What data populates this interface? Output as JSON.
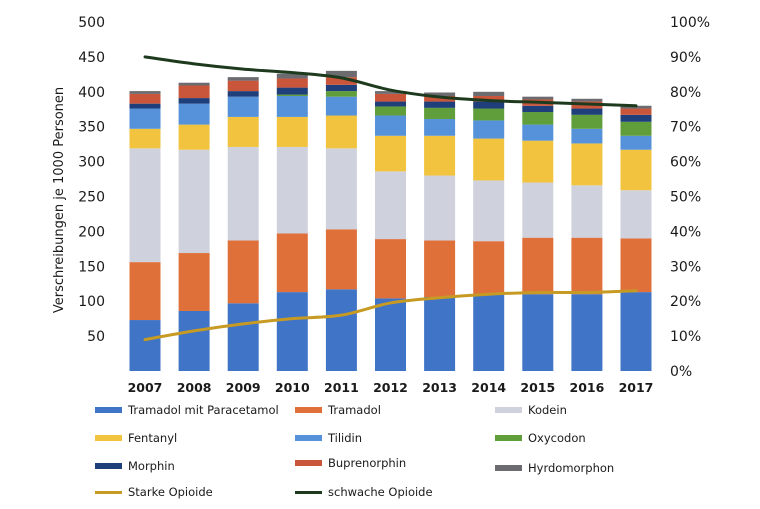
{
  "chart_data": {
    "type": "bar",
    "stacked": true,
    "title": "",
    "xlabel": "",
    "ylabel": "Verschreibungen je 1000 Personen",
    "ylim": [
      0,
      500
    ],
    "yticks": [
      "50",
      "100",
      "150",
      "200",
      "250",
      "300",
      "350",
      "400",
      "450",
      "500"
    ],
    "y2lim": [
      0,
      100
    ],
    "y2ticks": [
      "0%",
      "10%",
      "20%",
      "30%",
      "40%",
      "50%",
      "60%",
      "70%",
      "80%",
      "90%",
      "100%"
    ],
    "grid": false,
    "legend_position": "bottom",
    "categories": [
      "2007",
      "2008",
      "2009",
      "2010",
      "2011",
      "2012",
      "2013",
      "2014",
      "2015",
      "2016",
      "2017"
    ],
    "series": [
      {
        "name": "Tramadol mit Paracetamol",
        "color": "#3f74c6",
        "values": [
          73,
          86,
          97,
          113,
          117,
          104,
          106,
          109,
          110,
          110,
          113
        ]
      },
      {
        "name": "Tramadol",
        "color": "#e0703a",
        "values": [
          83,
          83,
          90,
          84,
          86,
          85,
          81,
          77,
          81,
          81,
          77
        ]
      },
      {
        "name": "Kodein",
        "color": "#cfd2dc",
        "values": [
          163,
          148,
          134,
          124,
          116,
          97,
          93,
          87,
          79,
          75,
          69
        ]
      },
      {
        "name": "Fentanyl",
        "color": "#f2c33e",
        "values": [
          28,
          36,
          43,
          43,
          47,
          51,
          57,
          60,
          60,
          60,
          58
        ]
      },
      {
        "name": "Tilidin",
        "color": "#5592da",
        "values": [
          29,
          30,
          29,
          30,
          27,
          29,
          24,
          26,
          23,
          21,
          20
        ]
      },
      {
        "name": "Oxycodon",
        "color": "#5f9e3a",
        "values": [
          0,
          0,
          0,
          2,
          8,
          13,
          16,
          17,
          18,
          20,
          20
        ]
      },
      {
        "name": "Morphin",
        "color": "#1f3f7a",
        "values": [
          7,
          8,
          8,
          10,
          9,
          7,
          9,
          10,
          9,
          9,
          10
        ]
      },
      {
        "name": "Buprenorphin",
        "color": "#c9553a",
        "values": [
          14,
          18,
          15,
          13,
          11,
          11,
          8,
          8,
          9,
          10,
          9
        ]
      },
      {
        "name": "Hyrdomorphon",
        "color": "#6b6b70",
        "values": [
          4,
          4,
          5,
          7,
          9,
          4,
          5,
          6,
          4,
          4,
          4
        ]
      }
    ],
    "lines": [
      {
        "name": "Starke Opioide",
        "color": "#c79a24",
        "axis": "right",
        "unit": "%",
        "values": [
          9,
          11.5,
          13.5,
          15,
          16,
          19.5,
          21,
          22,
          22.5,
          22.5,
          23
        ]
      },
      {
        "name": "schwache Opioide",
        "color": "#1e3a1e",
        "axis": "right",
        "unit": "%",
        "values": [
          90,
          88,
          86.5,
          85.5,
          84,
          80.5,
          78.5,
          77.5,
          77,
          76.5,
          76
        ]
      }
    ]
  },
  "legend": [
    {
      "label": "Tramadol mit Paracetamol",
      "kind": "bar",
      "color": "#3f74c6"
    },
    {
      "label": "Tramadol",
      "kind": "bar",
      "color": "#e0703a"
    },
    {
      "label": "Kodein",
      "kind": "bar",
      "color": "#cfd2dc"
    },
    {
      "label": "Fentanyl",
      "kind": "bar",
      "color": "#f2c33e"
    },
    {
      "label": "Tilidin",
      "kind": "bar",
      "color": "#5592da"
    },
    {
      "label": "Oxycodon",
      "kind": "bar",
      "color": "#5f9e3a"
    },
    {
      "label": "Morphin",
      "kind": "bar",
      "color": "#1f3f7a"
    },
    {
      "label": "Buprenorphin",
      "kind": "bar",
      "color": "#c9553a"
    },
    {
      "label": "Hyrdomorphon",
      "kind": "bar",
      "color": "#6b6b70"
    },
    {
      "label": "Starke Opioide",
      "kind": "line",
      "color": "#c79a24"
    },
    {
      "label": "schwache Opioide",
      "kind": "line",
      "color": "#1e3a1e"
    }
  ]
}
